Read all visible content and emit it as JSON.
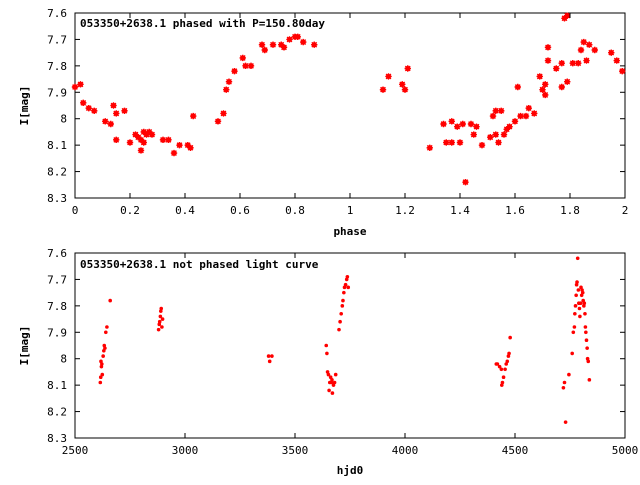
{
  "chart_data": [
    {
      "type": "scatter",
      "title": "053350+2638.1 phased with P=150.80day",
      "xlabel": "phase",
      "ylabel": "I[mag]",
      "xlim": [
        0,
        2
      ],
      "ylim": [
        8.3,
        7.6
      ],
      "y_inverted": true,
      "x_ticks": [
        "0",
        "0.2",
        "0.4",
        "0.6",
        "0.8",
        "1",
        "1.2",
        "1.4",
        "1.6",
        "1.8",
        "2"
      ],
      "x_tick_values": [
        0,
        0.2,
        0.4,
        0.6,
        0.8,
        1.0,
        1.2,
        1.4,
        1.6,
        1.8,
        2.0
      ],
      "y_ticks": [
        "7.6",
        "7.7",
        "7.8",
        "7.9",
        "8",
        "8.1",
        "8.2",
        "8.3"
      ],
      "y_tick_values": [
        7.6,
        7.7,
        7.8,
        7.9,
        8.0,
        8.1,
        8.2,
        8.3
      ],
      "grid": false,
      "marker": "star",
      "color": "#ff0000",
      "series": [
        {
          "points": [
            [
              0.0,
              7.88
            ],
            [
              0.02,
              7.87
            ],
            [
              0.03,
              7.94
            ],
            [
              0.05,
              7.96
            ],
            [
              0.07,
              7.97
            ],
            [
              0.11,
              8.01
            ],
            [
              0.13,
              8.02
            ],
            [
              0.14,
              7.95
            ],
            [
              0.15,
              7.98
            ],
            [
              0.15,
              8.08
            ],
            [
              0.18,
              7.97
            ],
            [
              0.2,
              8.09
            ],
            [
              0.22,
              8.06
            ],
            [
              0.23,
              8.07
            ],
            [
              0.24,
              8.08
            ],
            [
              0.24,
              8.12
            ],
            [
              0.25,
              8.05
            ],
            [
              0.25,
              8.09
            ],
            [
              0.26,
              8.06
            ],
            [
              0.27,
              8.05
            ],
            [
              0.28,
              8.06
            ],
            [
              0.32,
              8.08
            ],
            [
              0.34,
              8.08
            ],
            [
              0.36,
              8.13
            ],
            [
              0.38,
              8.1
            ],
            [
              0.41,
              8.1
            ],
            [
              0.42,
              8.11
            ],
            [
              0.43,
              7.99
            ],
            [
              0.52,
              8.01
            ],
            [
              0.54,
              7.98
            ],
            [
              0.55,
              7.89
            ],
            [
              0.56,
              7.86
            ],
            [
              0.58,
              7.82
            ],
            [
              0.61,
              7.77
            ],
            [
              0.62,
              7.8
            ],
            [
              0.64,
              7.8
            ],
            [
              0.68,
              7.72
            ],
            [
              0.69,
              7.74
            ],
            [
              0.72,
              7.72
            ],
            [
              0.75,
              7.72
            ],
            [
              0.76,
              7.73
            ],
            [
              0.78,
              7.7
            ],
            [
              0.8,
              7.69
            ],
            [
              0.81,
              7.69
            ],
            [
              0.83,
              7.71
            ],
            [
              0.87,
              7.72
            ],
            [
              1.12,
              7.89
            ],
            [
              1.14,
              7.84
            ],
            [
              1.19,
              7.87
            ],
            [
              1.2,
              7.89
            ],
            [
              1.21,
              7.81
            ],
            [
              1.29,
              8.11
            ],
            [
              1.34,
              8.02
            ],
            [
              1.35,
              8.09
            ],
            [
              1.37,
              8.09
            ],
            [
              1.37,
              8.01
            ],
            [
              1.39,
              8.03
            ],
            [
              1.4,
              8.09
            ],
            [
              1.41,
              8.02
            ],
            [
              1.42,
              8.24
            ],
            [
              1.44,
              8.02
            ],
            [
              1.45,
              8.06
            ],
            [
              1.46,
              8.03
            ],
            [
              1.48,
              8.1
            ],
            [
              1.51,
              8.07
            ],
            [
              1.52,
              7.99
            ],
            [
              1.53,
              8.06
            ],
            [
              1.53,
              7.97
            ],
            [
              1.54,
              8.09
            ],
            [
              1.55,
              7.97
            ],
            [
              1.56,
              8.06
            ],
            [
              1.57,
              8.04
            ],
            [
              1.58,
              8.03
            ],
            [
              1.6,
              8.01
            ],
            [
              1.61,
              7.88
            ],
            [
              1.62,
              7.99
            ],
            [
              1.64,
              7.99
            ],
            [
              1.65,
              7.96
            ],
            [
              1.67,
              7.98
            ],
            [
              1.69,
              7.84
            ],
            [
              1.7,
              7.89
            ],
            [
              1.71,
              7.87
            ],
            [
              1.71,
              7.91
            ],
            [
              1.72,
              7.78
            ],
            [
              1.72,
              7.73
            ],
            [
              1.75,
              7.81
            ],
            [
              1.77,
              7.88
            ],
            [
              1.77,
              7.79
            ],
            [
              1.78,
              7.62
            ],
            [
              1.79,
              7.86
            ],
            [
              1.79,
              7.61
            ],
            [
              1.81,
              7.79
            ],
            [
              1.83,
              7.79
            ],
            [
              1.84,
              7.74
            ],
            [
              1.85,
              7.71
            ],
            [
              1.86,
              7.78
            ],
            [
              1.87,
              7.72
            ],
            [
              1.89,
              7.74
            ],
            [
              1.95,
              7.75
            ],
            [
              1.97,
              7.78
            ],
            [
              1.99,
              7.82
            ]
          ]
        }
      ]
    },
    {
      "type": "scatter",
      "title": "053350+2638.1 not phased light curve",
      "xlabel": "hjd0",
      "ylabel": "I[mag]",
      "xlim": [
        2500,
        5000
      ],
      "ylim": [
        8.3,
        7.6
      ],
      "y_inverted": true,
      "x_ticks": [
        "2500",
        "3000",
        "3500",
        "4000",
        "4500",
        "5000"
      ],
      "x_tick_values": [
        2500,
        3000,
        3500,
        4000,
        4500,
        5000
      ],
      "y_ticks": [
        "7.6",
        "7.7",
        "7.8",
        "7.9",
        "8",
        "8.1",
        "8.2",
        "8.3"
      ],
      "y_tick_values": [
        7.6,
        7.7,
        7.8,
        7.9,
        8.0,
        8.1,
        8.2,
        8.3
      ],
      "grid": false,
      "marker": "dot",
      "color": "#ff0000",
      "series": [
        {
          "points": [
            [
              2615,
              8.09
            ],
            [
              2617,
              8.07
            ],
            [
              2618,
              8.01
            ],
            [
              2620,
              8.03
            ],
            [
              2622,
              8.02
            ],
            [
              2624,
              8.06
            ],
            [
              2628,
              7.99
            ],
            [
              2631,
              7.97
            ],
            [
              2633,
              7.95
            ],
            [
              2636,
              7.96
            ],
            [
              2640,
              7.9
            ],
            [
              2645,
              7.88
            ],
            [
              2660,
              7.78
            ],
            [
              2880,
              7.89
            ],
            [
              2883,
              7.87
            ],
            [
              2885,
              7.86
            ],
            [
              2888,
              7.84
            ],
            [
              2890,
              7.82
            ],
            [
              2892,
              7.81
            ],
            [
              2895,
              7.88
            ],
            [
              2898,
              7.85
            ],
            [
              3380,
              7.99
            ],
            [
              3385,
              8.01
            ],
            [
              3395,
              7.99
            ],
            [
              3642,
              7.95
            ],
            [
              3645,
              7.98
            ],
            [
              3648,
              8.05
            ],
            [
              3652,
              8.06
            ],
            [
              3655,
              8.12
            ],
            [
              3658,
              8.09
            ],
            [
              3662,
              8.07
            ],
            [
              3665,
              8.09
            ],
            [
              3668,
              8.08
            ],
            [
              3670,
              8.13
            ],
            [
              3675,
              8.1
            ],
            [
              3680,
              8.09
            ],
            [
              3685,
              8.06
            ],
            [
              3700,
              7.89
            ],
            [
              3705,
              7.86
            ],
            [
              3710,
              7.83
            ],
            [
              3715,
              7.8
            ],
            [
              3718,
              7.78
            ],
            [
              3722,
              7.75
            ],
            [
              3725,
              7.73
            ],
            [
              3730,
              7.72
            ],
            [
              3735,
              7.7
            ],
            [
              3738,
              7.69
            ],
            [
              3742,
              7.73
            ],
            [
              4415,
              8.02
            ],
            [
              4420,
              8.02
            ],
            [
              4430,
              8.03
            ],
            [
              4438,
              8.04
            ],
            [
              4440,
              8.1
            ],
            [
              4443,
              8.09
            ],
            [
              4448,
              8.07
            ],
            [
              4455,
              8.04
            ],
            [
              4460,
              8.02
            ],
            [
              4465,
              8.01
            ],
            [
              4470,
              7.99
            ],
            [
              4473,
              7.98
            ],
            [
              4478,
              7.92
            ],
            [
              4720,
              8.11
            ],
            [
              4725,
              8.09
            ],
            [
              4730,
              8.24
            ],
            [
              4745,
              8.06
            ],
            [
              4760,
              7.98
            ],
            [
              4765,
              7.9
            ],
            [
              4770,
              7.88
            ],
            [
              4772,
              7.83
            ],
            [
              4775,
              7.8
            ],
            [
              4778,
              7.76
            ],
            [
              4780,
              7.72
            ],
            [
              4782,
              7.71
            ],
            [
              4785,
              7.62
            ],
            [
              4788,
              7.74
            ],
            [
              4790,
              7.79
            ],
            [
              4793,
              7.81
            ],
            [
              4795,
              7.84
            ],
            [
              4798,
              7.79
            ],
            [
              4800,
              7.73
            ],
            [
              4803,
              7.76
            ],
            [
              4805,
              7.74
            ],
            [
              4808,
              7.75
            ],
            [
              4810,
              7.78
            ],
            [
              4813,
              7.8
            ],
            [
              4815,
              7.79
            ],
            [
              4818,
              7.83
            ],
            [
              4820,
              7.88
            ],
            [
              4822,
              7.9
            ],
            [
              4825,
              7.93
            ],
            [
              4828,
              7.96
            ],
            [
              4830,
              8.0
            ],
            [
              4833,
              8.01
            ],
            [
              4838,
              8.08
            ]
          ]
        }
      ]
    }
  ]
}
